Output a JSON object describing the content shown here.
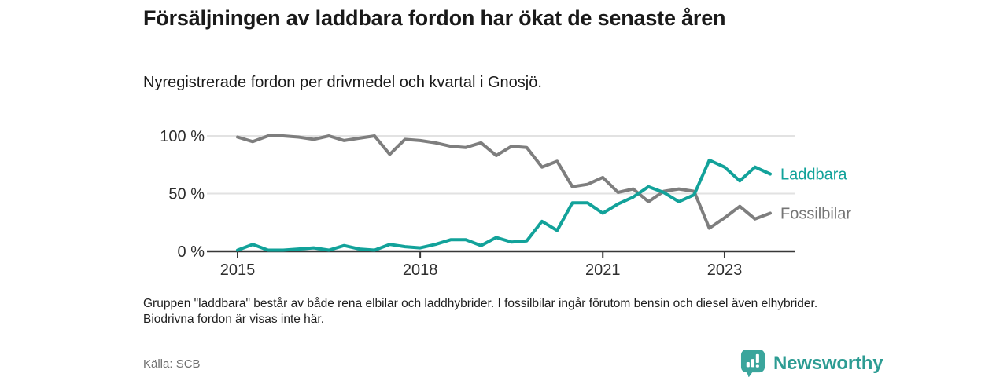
{
  "header": {
    "title": "Försäljningen av laddbara fordon har ökat de senaste åren",
    "subtitle": "Nyregistrerade fordon per drivmedel och kvartal i Gnosjö."
  },
  "chart_data": {
    "type": "line",
    "unit": "%",
    "title": "Nyregistrerade fordon per drivmedel och kvartal i Gnosjö",
    "ylim": [
      0,
      100
    ],
    "grid": "horizontal",
    "legend_position": "end-of-line",
    "y_axis_ticks": [
      {
        "label": "100 %",
        "value": 100
      },
      {
        "label": "50 %",
        "value": 50
      },
      {
        "label": "0 %",
        "value": 0
      }
    ],
    "gridline_values": [
      100,
      50
    ],
    "x_tick_labels": [
      "2015",
      "2018",
      "2021",
      "2023"
    ],
    "x_tick_indices": [
      0,
      12,
      24,
      32
    ],
    "x": [
      "2015 Q1",
      "2015 Q2",
      "2015 Q3",
      "2015 Q4",
      "2016 Q1",
      "2016 Q2",
      "2016 Q3",
      "2016 Q4",
      "2017 Q1",
      "2017 Q2",
      "2017 Q3",
      "2017 Q4",
      "2018 Q1",
      "2018 Q2",
      "2018 Q3",
      "2018 Q4",
      "2019 Q1",
      "2019 Q2",
      "2019 Q3",
      "2019 Q4",
      "2020 Q1",
      "2020 Q2",
      "2020 Q3",
      "2020 Q4",
      "2021 Q1",
      "2021 Q2",
      "2021 Q3",
      "2021 Q4",
      "2022 Q1",
      "2022 Q2",
      "2022 Q3",
      "2022 Q4",
      "2023 Q1",
      "2023 Q2",
      "2023 Q3",
      "2023 Q4"
    ],
    "series": [
      {
        "name": "Fossilbilar",
        "color": "#7e7e7e",
        "label_color": "#757575",
        "values": [
          99,
          95,
          100,
          100,
          99,
          97,
          100,
          96,
          98,
          100,
          84,
          97,
          96,
          94,
          91,
          90,
          94,
          83,
          91,
          90,
          73,
          78,
          56,
          58,
          64,
          51,
          54,
          43,
          52,
          54,
          52,
          20,
          29,
          39,
          28,
          33
        ]
      },
      {
        "name": "Laddbara",
        "color": "#12a29a",
        "label_color": "#12a29a",
        "values": [
          1,
          6,
          1,
          1,
          2,
          3,
          1,
          5,
          2,
          1,
          6,
          4,
          3,
          6,
          10,
          10,
          5,
          12,
          8,
          9,
          26,
          18,
          42,
          42,
          33,
          41,
          47,
          56,
          51,
          43,
          49,
          79,
          73,
          61,
          73,
          67
        ]
      }
    ]
  },
  "footnote": "Gruppen \"laddbara\" består av både rena elbilar och laddhybrider. I fossilbilar ingår förutom bensin och diesel även elhybrider. Biodrivna fordon är visas inte här.",
  "source": "Källa: SCB",
  "logo": {
    "text": "Newsworthy",
    "icon": "bar-chart-speech-bubble-icon",
    "icon_color": "#3aa59c",
    "text_color": "#2d9c93"
  },
  "colors": {
    "background": "#ffffff",
    "gridline": "#e2e2e2",
    "axis": "#383838",
    "axis_text": "#2e2e2e"
  }
}
